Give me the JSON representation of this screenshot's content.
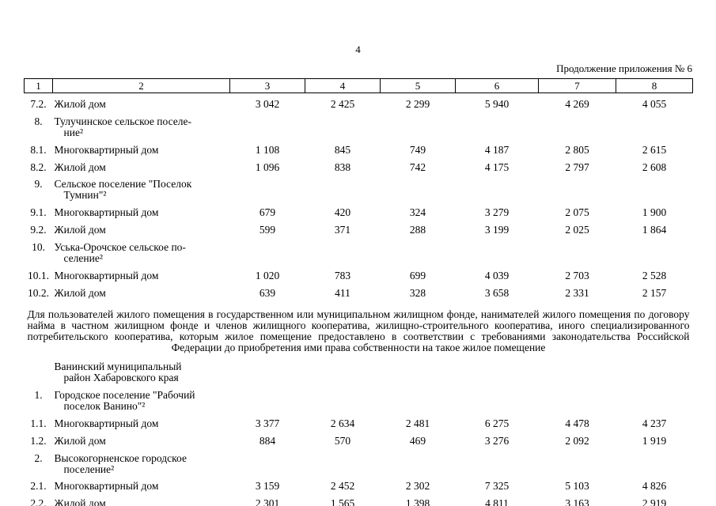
{
  "page": {
    "number": "4",
    "continuation": "Продолжение приложения № 6"
  },
  "table": {
    "headers": [
      "1",
      "2",
      "3",
      "4",
      "5",
      "6",
      "7",
      "8"
    ],
    "rows": [
      {
        "num": "7.2.",
        "name": "Жилой дом",
        "values": [
          "3 042",
          "2 425",
          "2 299",
          "5 940",
          "4 269",
          "4 055"
        ]
      },
      {
        "num": "8.",
        "name": "Тулучинское сельское поселе-\nние²",
        "values": []
      },
      {
        "num": "8.1.",
        "name": "Многоквартирный дом",
        "values": [
          "1 108",
          "845",
          "749",
          "4 187",
          "2 805",
          "2 615"
        ]
      },
      {
        "num": "8.2.",
        "name": "Жилой дом",
        "values": [
          "1 096",
          "838",
          "742",
          "4 175",
          "2 797",
          "2 608"
        ]
      },
      {
        "num": "9.",
        "name": "Сельское поселение \"Поселок\nТумнин\"²",
        "values": []
      },
      {
        "num": "9.1.",
        "name": "Многоквартирный дом",
        "values": [
          "679",
          "420",
          "324",
          "3 279",
          "2 075",
          "1 900"
        ]
      },
      {
        "num": "9.2.",
        "name": "Жилой дом",
        "values": [
          "599",
          "371",
          "288",
          "3 199",
          "2 025",
          "1 864"
        ]
      },
      {
        "num": "10.",
        "name": "Уська-Орочское сельское по-\nселение²",
        "values": []
      },
      {
        "num": "10.1.",
        "name": "Многоквартирный дом",
        "values": [
          "1 020",
          "783",
          "699",
          "4 039",
          "2 703",
          "2 528"
        ]
      },
      {
        "num": "10.2.",
        "name": "Жилой дом",
        "values": [
          "639",
          "411",
          "328",
          "3 658",
          "2 331",
          "2 157"
        ]
      },
      {
        "type": "note",
        "text": "Для пользователей жилого помещения в государственном или муниципальном жилищном фонде, нанимателей жилого помещения по договору найма в частном жилищном фонде и членов жилищного кооператива, жилищно-строительного кооператива, иного специализированного потребительского кооператива, которым жилое помещение предоставлено в соответствии с требованиями законодательства Российской Федерации до приобретения ими права собственности на такое жилое помещение"
      },
      {
        "num": "",
        "name": "Ванинский муниципальный\nрайон Хабаровского края",
        "values": []
      },
      {
        "num": "1.",
        "name": "Городское поселение \"Рабочий\nпоселок Ванино\"²",
        "values": []
      },
      {
        "num": "1.1.",
        "name": "Многоквартирный дом",
        "values": [
          "3 377",
          "2 634",
          "2 481",
          "6 275",
          "4 478",
          "4 237"
        ]
      },
      {
        "num": "1.2.",
        "name": "Жилой дом",
        "values": [
          "884",
          "570",
          "469",
          "3 276",
          "2 092",
          "1 919"
        ]
      },
      {
        "num": "2.",
        "name": "Высокогорненское городское\nпоселение²",
        "values": []
      },
      {
        "num": "2.1.",
        "name": "Многоквартирный дом",
        "values": [
          "3 159",
          "2 452",
          "2 302",
          "7 325",
          "5 103",
          "4 826"
        ]
      },
      {
        "num": "2.2.",
        "name": "Жилой дом",
        "values": [
          "2 301",
          "1 565",
          "1 398",
          "4 811",
          "3 163",
          "2 919"
        ]
      }
    ]
  }
}
